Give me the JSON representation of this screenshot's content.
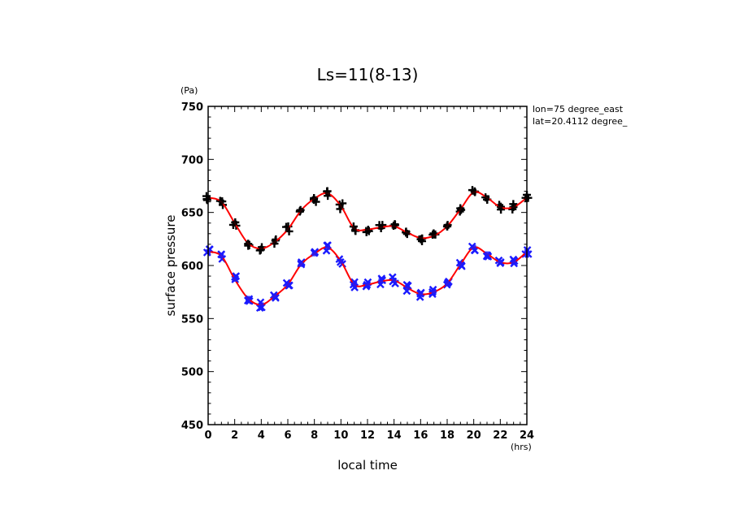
{
  "chart_data": {
    "type": "line",
    "title": "Ls=11(8-13)",
    "xlabel": "local time",
    "ylabel": "surface pressure",
    "x_unit": "(hrs)",
    "y_unit": "(Pa)",
    "annotations": [
      "lon=75 degree_east",
      "lat=20.4112 degree_"
    ],
    "xlim": [
      0,
      24
    ],
    "ylim": [
      450,
      750
    ],
    "x_ticks": [
      0,
      2,
      4,
      6,
      8,
      10,
      12,
      14,
      16,
      18,
      20,
      22,
      24
    ],
    "y_ticks": [
      450,
      500,
      550,
      600,
      650,
      700,
      750
    ],
    "x": [
      0,
      1,
      2,
      3,
      4,
      5,
      6,
      7,
      8,
      9,
      10,
      11,
      12,
      13,
      14,
      15,
      16,
      17,
      18,
      19,
      20,
      21,
      22,
      23,
      24
    ],
    "series": [
      {
        "marker": "plus",
        "color": "#000000",
        "values": [
          664,
          660,
          640,
          621,
          616,
          622,
          634,
          652,
          663,
          668,
          656,
          635,
          634,
          636,
          637,
          631,
          626,
          628,
          637,
          653,
          669,
          664,
          655,
          655,
          664
        ]
      },
      {
        "marker": "cross",
        "color": "#1a1aff",
        "values": [
          613,
          609,
          587,
          569,
          563,
          571,
          582,
          601,
          611,
          617,
          604,
          582,
          582,
          585,
          586,
          579,
          573,
          575,
          583,
          601,
          617,
          611,
          603,
          603,
          613
        ]
      }
    ],
    "fit_color": "#ff0000",
    "grid": false,
    "legend": "none"
  }
}
